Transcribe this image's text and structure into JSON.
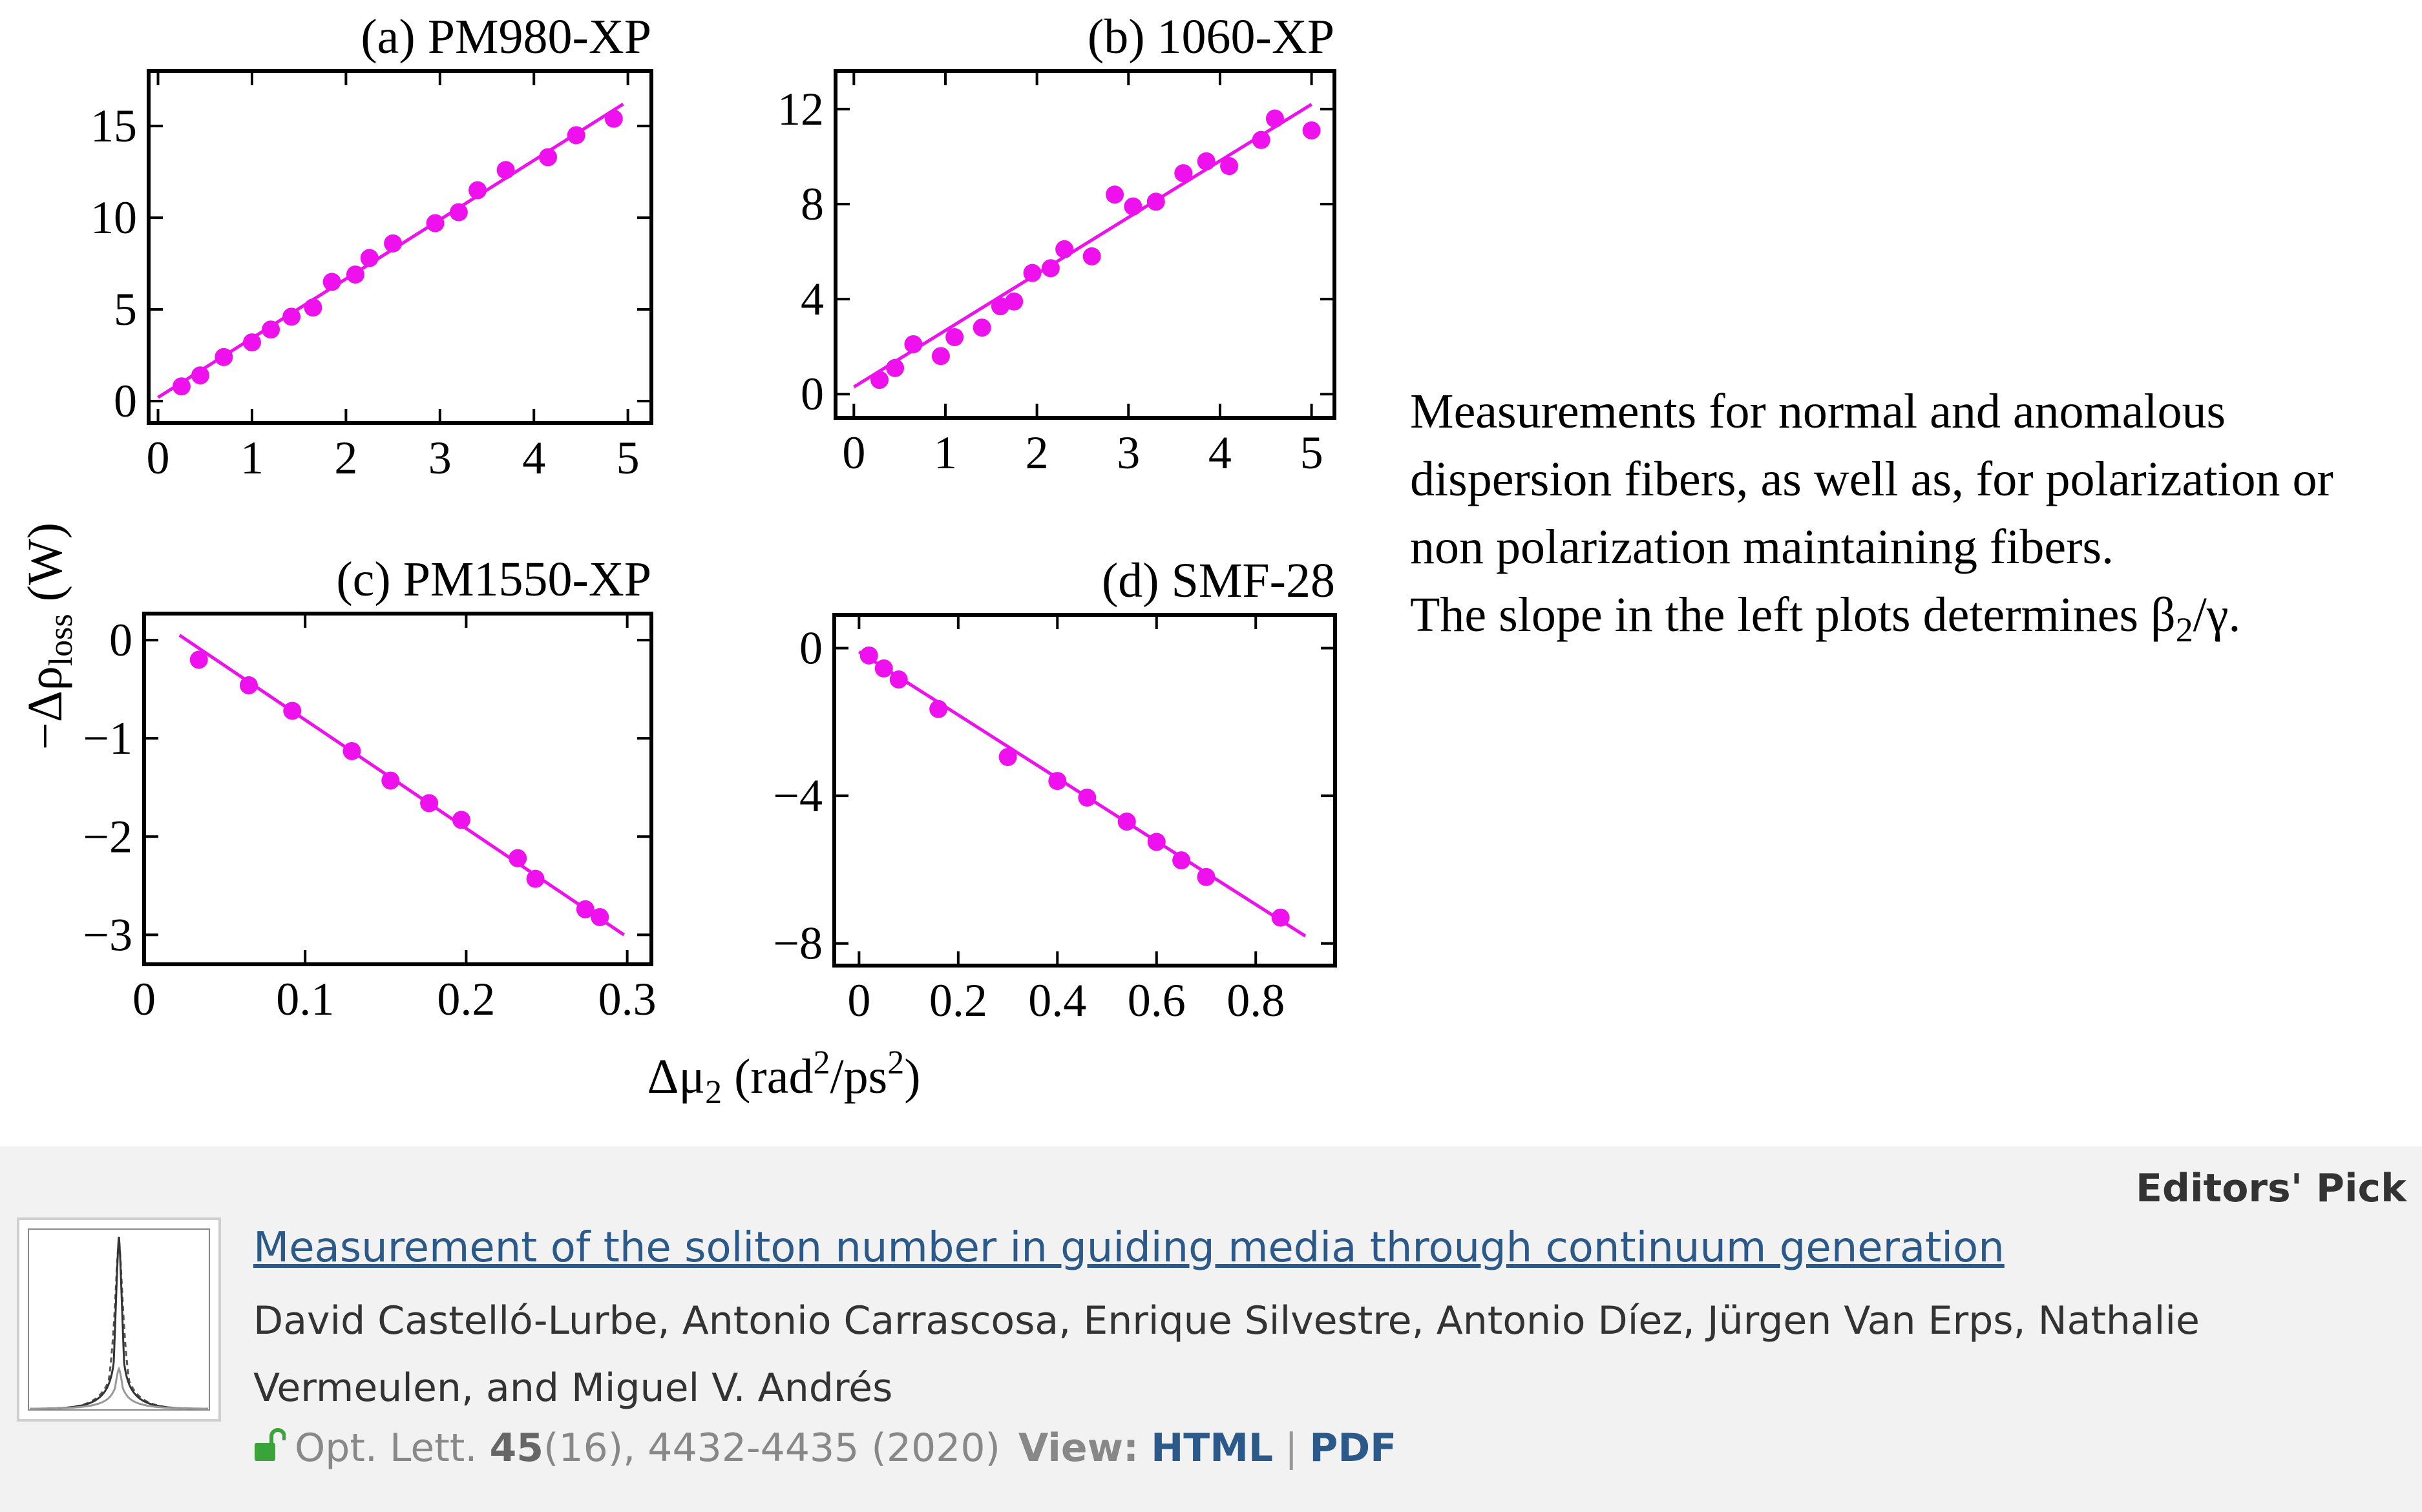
{
  "chart_data": [
    {
      "type": "scatter",
      "title": "(a) PM980-XP",
      "xlim": [
        -0.1,
        5.25
      ],
      "ylim": [
        -1.2,
        18
      ],
      "xticks": [
        0,
        1,
        2,
        3,
        4,
        5
      ],
      "xtick_labels": [
        "0",
        "1",
        "2",
        "3",
        "4",
        "5"
      ],
      "yticks": [
        0,
        5,
        10,
        15
      ],
      "ytick_labels": [
        "0",
        "5",
        "10",
        "15"
      ],
      "fit_line": [
        [
          0.0,
          0.2
        ],
        [
          4.95,
          16.2
        ]
      ],
      "points": [
        [
          0.25,
          0.8
        ],
        [
          0.45,
          1.4
        ],
        [
          0.7,
          2.4
        ],
        [
          1.0,
          3.2
        ],
        [
          1.2,
          3.9
        ],
        [
          1.42,
          4.6
        ],
        [
          1.65,
          5.1
        ],
        [
          1.85,
          6.5
        ],
        [
          2.1,
          6.9
        ],
        [
          2.25,
          7.8
        ],
        [
          2.5,
          8.6
        ],
        [
          2.95,
          9.7
        ],
        [
          3.2,
          10.3
        ],
        [
          3.4,
          11.5
        ],
        [
          3.7,
          12.6
        ],
        [
          4.15,
          13.3
        ],
        [
          4.45,
          14.5
        ],
        [
          4.85,
          15.4
        ]
      ],
      "xlabel": "",
      "ylabel": ""
    },
    {
      "type": "scatter",
      "title": "(b) 1060-XP",
      "xlim": [
        -0.2,
        5.25
      ],
      "ylim": [
        -1,
        13.6
      ],
      "xticks": [
        0,
        1,
        2,
        3,
        4,
        5
      ],
      "xtick_labels": [
        "0",
        "1",
        "2",
        "3",
        "4",
        "5"
      ],
      "yticks": [
        0,
        4,
        8,
        12
      ],
      "ytick_labels": [
        "0",
        "4",
        "8",
        "12"
      ],
      "fit_line": [
        [
          0.0,
          0.3
        ],
        [
          5.0,
          12.2
        ]
      ],
      "points": [
        [
          0.28,
          0.6
        ],
        [
          0.45,
          1.1
        ],
        [
          0.65,
          2.1
        ],
        [
          0.95,
          1.6
        ],
        [
          1.1,
          2.4
        ],
        [
          1.4,
          2.8
        ],
        [
          1.6,
          3.7
        ],
        [
          1.75,
          3.9
        ],
        [
          1.95,
          5.1
        ],
        [
          2.15,
          5.3
        ],
        [
          2.3,
          6.1
        ],
        [
          2.6,
          5.8
        ],
        [
          2.85,
          8.4
        ],
        [
          3.05,
          7.9
        ],
        [
          3.3,
          8.1
        ],
        [
          3.6,
          9.3
        ],
        [
          3.85,
          9.8
        ],
        [
          4.1,
          9.6
        ],
        [
          4.45,
          10.7
        ],
        [
          4.6,
          11.6
        ],
        [
          5.0,
          11.1
        ]
      ],
      "xlabel": "",
      "ylabel": ""
    },
    {
      "type": "scatter",
      "title": "(c) PM1550-XP",
      "xlim": [
        0,
        0.315
      ],
      "ylim": [
        -3.3,
        0.27
      ],
      "xticks": [
        0,
        0.1,
        0.2,
        0.3
      ],
      "xtick_labels": [
        "0",
        "0.1",
        "0.2",
        "0.3"
      ],
      "yticks": [
        0,
        -1,
        -2,
        -3
      ],
      "ytick_labels": [
        "0",
        "−1",
        "−2",
        "−3"
      ],
      "fit_line": [
        [
          0.022,
          0.05
        ],
        [
          0.298,
          -3.0
        ]
      ],
      "points": [
        [
          0.034,
          -0.2
        ],
        [
          0.065,
          -0.46
        ],
        [
          0.092,
          -0.72
        ],
        [
          0.129,
          -1.13
        ],
        [
          0.153,
          -1.43
        ],
        [
          0.177,
          -1.66
        ],
        [
          0.197,
          -1.83
        ],
        [
          0.232,
          -2.22
        ],
        [
          0.243,
          -2.43
        ],
        [
          0.274,
          -2.74
        ],
        [
          0.283,
          -2.82
        ]
      ],
      "xlabel": "",
      "ylabel": ""
    },
    {
      "type": "scatter",
      "title": "(d) SMF-28",
      "xlim": [
        -0.05,
        0.96
      ],
      "ylim": [
        -8.6,
        0.9
      ],
      "xticks": [
        0,
        0.2,
        0.4,
        0.6,
        0.8
      ],
      "xtick_labels": [
        "0",
        "0.2",
        "0.4",
        "0.6",
        "0.8"
      ],
      "yticks": [
        0,
        -4,
        -8
      ],
      "ytick_labels": [
        "0",
        "−4",
        "−8"
      ],
      "fit_line": [
        [
          0.0,
          -0.1
        ],
        [
          0.9,
          -7.8
        ]
      ],
      "points": [
        [
          0.02,
          -0.2
        ],
        [
          0.05,
          -0.55
        ],
        [
          0.08,
          -0.85
        ],
        [
          0.16,
          -1.65
        ],
        [
          0.3,
          -2.95
        ],
        [
          0.4,
          -3.6
        ],
        [
          0.46,
          -4.05
        ],
        [
          0.54,
          -4.7
        ],
        [
          0.6,
          -5.25
        ],
        [
          0.65,
          -5.75
        ],
        [
          0.7,
          -6.2
        ],
        [
          0.85,
          -7.3
        ]
      ],
      "xlabel": "",
      "ylabel": ""
    }
  ],
  "axes": {
    "shared_ylabel": "−Δρ",
    "shared_ylabel_sub": "loss",
    "shared_ylabel_unit": " (W)",
    "shared_xlabel": "Δμ",
    "shared_xlabel_sub": "2",
    "shared_xlabel_unit_a": " (rad",
    "shared_xlabel_sup1": "2",
    "shared_xlabel_unit_b": "/ps",
    "shared_xlabel_sup2": "2",
    "shared_xlabel_unit_c": ")"
  },
  "colors": {
    "data": "#ee11ee",
    "axis": "#000000"
  },
  "caption": {
    "line1": "Measurements for normal and  anomalous",
    "line2": "dispersion fibers, as well as, for polarization or",
    "line3": "non polarization maintaining fibers.",
    "line4_pre": "The slope in the left plots determines β",
    "line4_sub": "2",
    "line4_post": "/γ."
  },
  "article": {
    "badge": "Editors' Pick",
    "title": "Measurement of the soliton number in guiding media through continuum generation",
    "authors": "David Castelló-Lurbe, Antonio Carrascosa, Enrique Silvestre, Antonio Díez, Jürgen Van Erps, Nathalie Vermeulen, and Miguel V. Andrés",
    "journal": "Opt. Lett.",
    "volume": "45",
    "issue_pages_year": "(16), 4432-4435 (2020)",
    "view_label": "View:",
    "html_label": "HTML",
    "separator": "|",
    "pdf_label": "PDF",
    "icons": {
      "access": "open-lock-icon",
      "thumbnail": "spectrum-thumbnail-icon"
    }
  }
}
